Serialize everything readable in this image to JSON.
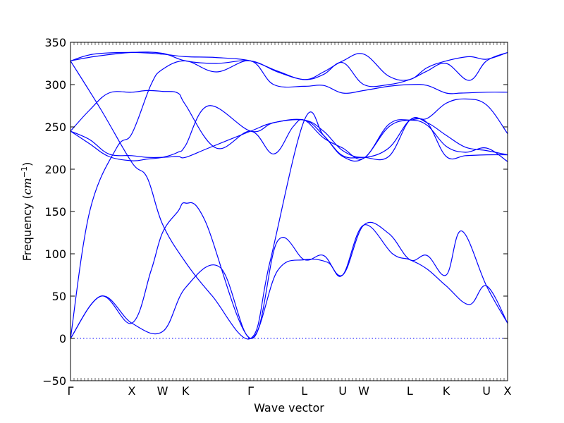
{
  "chart_data": {
    "type": "line",
    "title": "",
    "xlabel": "Wave vector",
    "ylabel": "Frequency ($cm^{-1}$)",
    "ylabel_display": {
      "prefix": "Frequency (",
      "math": "cm",
      "sup": "−1",
      "suffix": ")"
    },
    "ylim": [
      -50,
      350
    ],
    "yticks": [
      -50,
      0,
      50,
      100,
      150,
      200,
      250,
      300,
      350
    ],
    "xlim": [
      0,
      11.4
    ],
    "special_points": [
      {
        "label": "Γ",
        "x": 0
      },
      {
        "label": "X",
        "x": 1.6
      },
      {
        "label": "W",
        "x": 2.4
      },
      {
        "label": "K",
        "x": 3.0
      },
      {
        "label": "Γ",
        "x": 4.7
      },
      {
        "label": "L",
        "x": 6.1
      },
      {
        "label": "U",
        "x": 7.1
      },
      {
        "label": "W",
        "x": 7.65
      },
      {
        "label": "L",
        "x": 8.85
      },
      {
        "label": "K",
        "x": 9.8
      },
      {
        "label": "U",
        "x": 10.85
      },
      {
        "label": "X",
        "x": 11.4
      }
    ],
    "line_color": "#0000ff",
    "zero_line": {
      "y": 0,
      "style": "dotted"
    },
    "series": [
      {
        "x": [
          0,
          0.8,
          1.6,
          2.4,
          3.0,
          3.9,
          4.7,
          5.4,
          6.1,
          6.7,
          7.1,
          7.65,
          8.4,
          8.85,
          9.3,
          9.8,
          10.4,
          10.85,
          11.4
        ],
        "y": [
          0,
          50,
          18,
          8,
          60,
          84,
          0,
          80,
          93,
          90,
          75,
          134,
          100,
          93,
          82,
          62,
          40,
          62,
          18
        ]
      },
      {
        "x": [
          0,
          0.8,
          1.6,
          2.1,
          2.4,
          2.8,
          3.0,
          3.5,
          4.7,
          5.4,
          6.1,
          6.6,
          7.1,
          7.65,
          8.3,
          8.85,
          9.3,
          9.8,
          10.2,
          10.85,
          11.4
        ],
        "y": [
          0,
          50,
          18,
          80,
          125,
          150,
          160,
          140,
          0,
          115,
          93,
          98,
          75,
          134,
          124,
          93,
          98,
          75,
          127,
          62,
          18
        ]
      },
      {
        "x": [
          0,
          0.5,
          1.2,
          1.6,
          2.1,
          2.4,
          3.0,
          3.8,
          4.7,
          5.3,
          6.1,
          6.6,
          7.1,
          7.65,
          8.3,
          8.85,
          9.3,
          9.8,
          10.2,
          10.85,
          11.4
        ],
        "y": [
          0,
          150,
          225,
          242,
          300,
          318,
          328,
          315,
          328,
          300,
          298,
          299,
          290,
          293,
          298,
          300,
          299,
          290,
          290,
          291,
          291
        ]
      },
      {
        "x": [
          0,
          0.5,
          1.0,
          1.6,
          2.0,
          2.4,
          2.8,
          3.0,
          3.8,
          4.7,
          5.3,
          5.8,
          6.1,
          6.6,
          7.1,
          7.65,
          8.3,
          8.85,
          9.3,
          9.8,
          10.3,
          10.85,
          11.4
        ],
        "y": [
          245,
          270,
          290,
          291,
          293,
          292,
          290,
          276,
          225,
          245,
          218,
          250,
          258,
          237,
          225,
          213,
          253,
          258,
          252,
          227,
          220,
          225,
          209
        ]
      },
      {
        "x": [
          0,
          0.5,
          1.0,
          1.6,
          2.0,
          2.4,
          2.8,
          3.0,
          3.6,
          4.7,
          5.3,
          6.1,
          6.6,
          7.1,
          7.65,
          8.3,
          8.85,
          9.3,
          9.8,
          10.3,
          10.85,
          11.4
        ],
        "y": [
          245,
          230,
          215,
          210,
          212,
          214,
          220,
          228,
          275,
          245,
          255,
          258,
          245,
          222,
          214,
          225,
          258,
          260,
          278,
          283,
          276,
          242
        ]
      },
      {
        "x": [
          0,
          0.5,
          1.0,
          1.6,
          2.0,
          2.4,
          2.8,
          3.0,
          3.6,
          4.7,
          5.3,
          6.1,
          6.6,
          7.1,
          7.65,
          8.3,
          8.85,
          9.3,
          9.8,
          10.3,
          10.85,
          11.4
        ],
        "y": [
          245,
          235,
          218,
          216,
          214,
          214,
          215,
          214,
          225,
          245,
          255,
          258,
          240,
          216,
          214,
          215,
          258,
          255,
          240,
          226,
          222,
          217
        ]
      },
      {
        "x": [
          0,
          0.8,
          1.6,
          2.0,
          2.4,
          3.0,
          3.7,
          4.7,
          5.2,
          6.1,
          6.6,
          7.1,
          7.65,
          8.3,
          8.85,
          9.3,
          9.8,
          10.3,
          10.85,
          11.4
        ],
        "y": [
          328,
          270,
          208,
          190,
          135,
          90,
          50,
          0,
          90,
          258,
          240,
          215,
          213,
          250,
          258,
          255,
          215,
          216,
          217,
          217
        ]
      },
      {
        "x": [
          0,
          0.6,
          1.6,
          2.4,
          3.0,
          3.8,
          4.7,
          5.4,
          6.1,
          6.6,
          7.1,
          7.65,
          8.3,
          8.85,
          9.3,
          9.8,
          10.4,
          10.85,
          11.4
        ],
        "y": [
          328,
          333,
          338,
          337,
          328,
          325,
          328,
          315,
          306,
          312,
          326,
          300,
          300,
          306,
          316,
          325,
          305,
          328,
          338
        ]
      },
      {
        "x": [
          0,
          0.6,
          1.6,
          2.4,
          3.0,
          3.8,
          4.7,
          5.4,
          6.1,
          6.6,
          7.1,
          7.65,
          8.3,
          8.85,
          9.3,
          9.8,
          10.4,
          10.85,
          11.4
        ],
        "y": [
          328,
          336,
          338,
          336,
          333,
          332,
          328,
          316,
          306,
          315,
          328,
          336,
          310,
          306,
          320,
          328,
          333,
          330,
          338
        ]
      }
    ]
  }
}
